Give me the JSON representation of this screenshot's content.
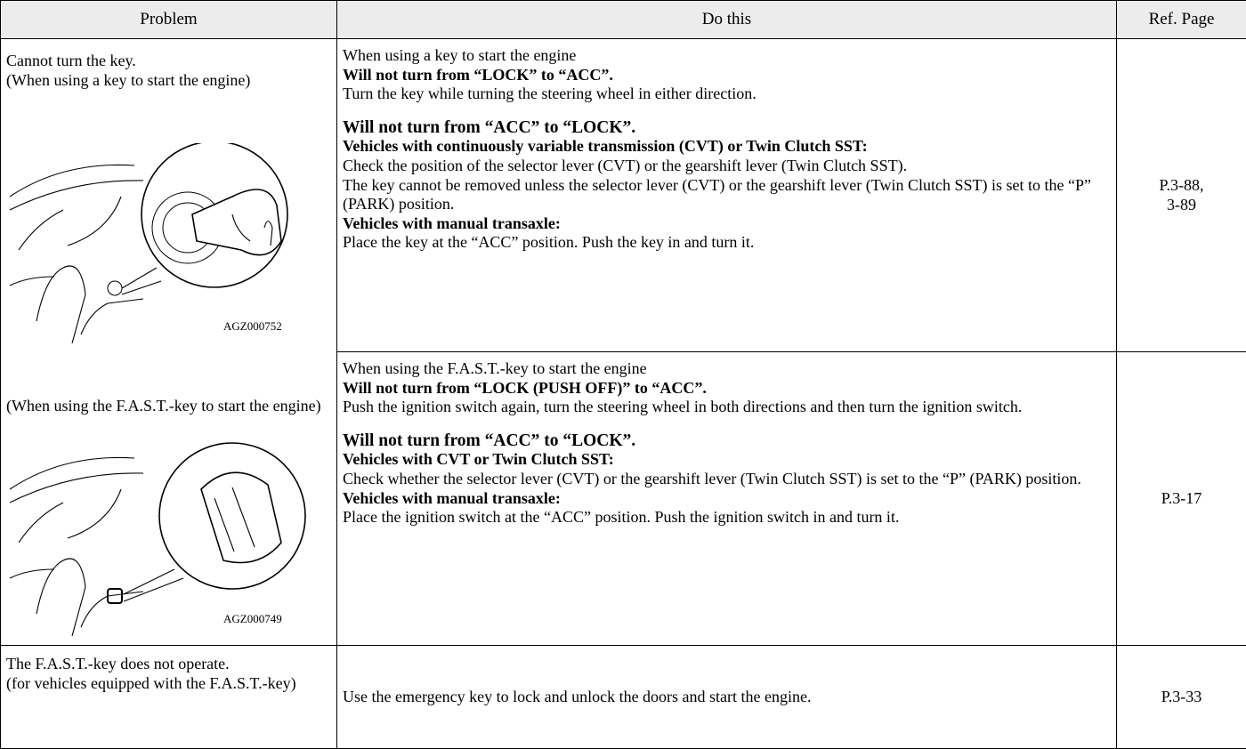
{
  "table": {
    "header": [
      "Problem",
      "Do this",
      "Ref. Page"
    ],
    "rows": [
      {
        "problem": [
          "Cannot turn the key.",
          "(When using a key to start the engine)"
        ],
        "figure_label": "AGZ000752",
        "blocks": [
          [
            {
              "text": "When using a key to start the engine",
              "bold": false
            },
            {
              "text": "Will not turn from “LOCK” to “ACC”.",
              "bold": true
            },
            {
              "text": "Turn the key while turning the steering wheel in either direction.",
              "bold": false
            }
          ],
          [
            {
              "text": "Will not turn from “ACC” to “LOCK”.",
              "bold": true
            },
            {
              "text": "Vehicles with continuously variable transmission (CVT) or Twin Clutch SST:",
              "bold": true
            },
            {
              "text": "Check the position of the selector lever (CVT) or the gearshift lever (Twin Clutch SST).",
              "bold": false
            },
            {
              "text": "The key cannot be removed unless the selector lever (CVT) or the gearshift lever (Twin Clutch SST) is set to the “P” (PARK) position.",
              "bold": false
            },
            {
              "text": "Vehicles with manual transaxle:",
              "bold": true
            },
            {
              "text": "Place the key at the “ACC” position. Push the key in and turn it.",
              "bold": false
            }
          ]
        ],
        "ref": [
          "P.3-88,",
          "3-89"
        ]
      },
      {
        "problem": [
          "(When using the F.A.S.T.-key to start the engine)"
        ],
        "figure_label": "AGZ000749",
        "blocks": [
          [
            {
              "text": "When using the F.A.S.T.-key to start the engine",
              "bold": false
            },
            {
              "text": "Will not turn from “LOCK (PUSH OFF)” to “ACC”.",
              "bold": true
            },
            {
              "text": "Push the ignition switch again, turn the steering wheel in both directions and then turn the ignition switch.",
              "bold": false
            }
          ],
          [
            {
              "text": "Will not turn from “ACC” to “LOCK”.",
              "bold": true
            },
            {
              "text": "Vehicles with CVT or Twin Clutch SST:",
              "bold": true
            },
            {
              "text": "Check whether the selector lever (CVT) or the gearshift lever (Twin Clutch SST) is set to the “P” (PARK) position.",
              "bold": false
            },
            {
              "text": "Vehicles with manual transaxle:",
              "bold": true
            },
            {
              "text": "Place the ignition switch at the “ACC” position. Push the ignition switch in and turn it.",
              "bold": false
            }
          ]
        ],
        "ref": [
          "P.3-17"
        ]
      },
      {
        "problem": [
          "The F.A.S.T.-key does not operate.",
          "(for vehicles equipped with the F.A.S.T.-key)"
        ],
        "blocks": [
          [
            {
              "text": "Use the emergency key to lock and unlock the doors and start the engine.",
              "bold": false
            }
          ]
        ],
        "ref": [
          "P.3-33"
        ]
      }
    ]
  }
}
